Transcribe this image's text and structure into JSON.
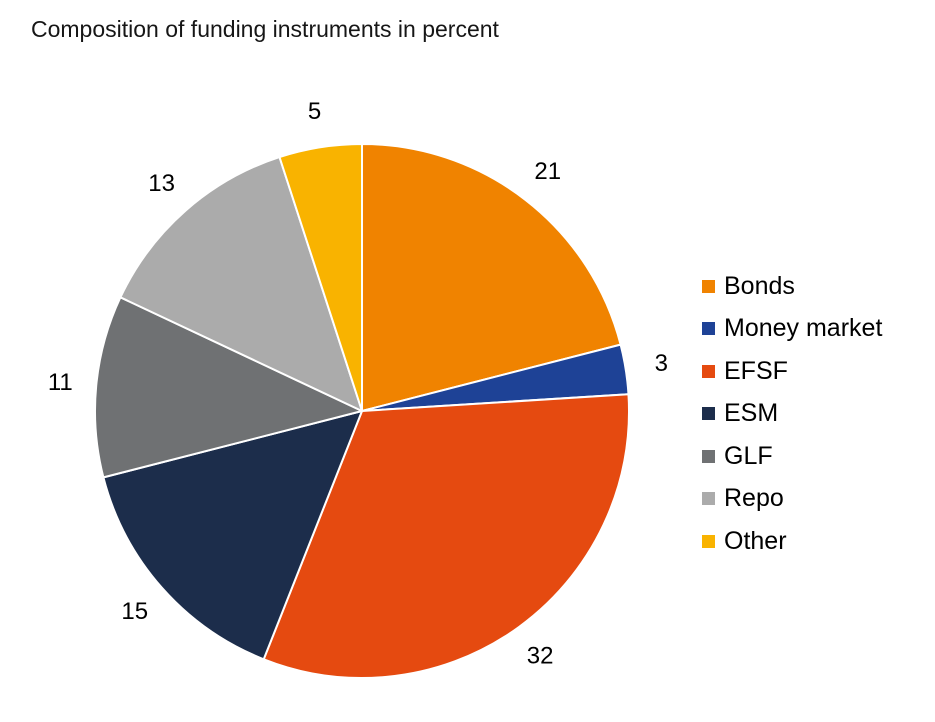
{
  "chart_data": {
    "type": "pie",
    "title": "Composition of funding instruments in percent",
    "unit": "percent",
    "start_angle_deg": 0,
    "direction": "clockwise",
    "legend_position": "right",
    "total": 100,
    "slices": [
      {
        "label": "Bonds",
        "value": 21,
        "color": "#F08300"
      },
      {
        "label": "Money market",
        "value": 3,
        "color": "#1E4296"
      },
      {
        "label": "EFSF",
        "value": 32,
        "color": "#E54A10"
      },
      {
        "label": "ESM",
        "value": 15,
        "color": "#1C2D4B"
      },
      {
        "label": "GLF",
        "value": 11,
        "color": "#6F7173"
      },
      {
        "label": "Repo",
        "value": 13,
        "color": "#ABABAB"
      },
      {
        "label": "Other",
        "value": 5,
        "color": "#F9B300"
      }
    ],
    "slice_border_color": "#FFFFFF",
    "text_color": "#000000"
  }
}
